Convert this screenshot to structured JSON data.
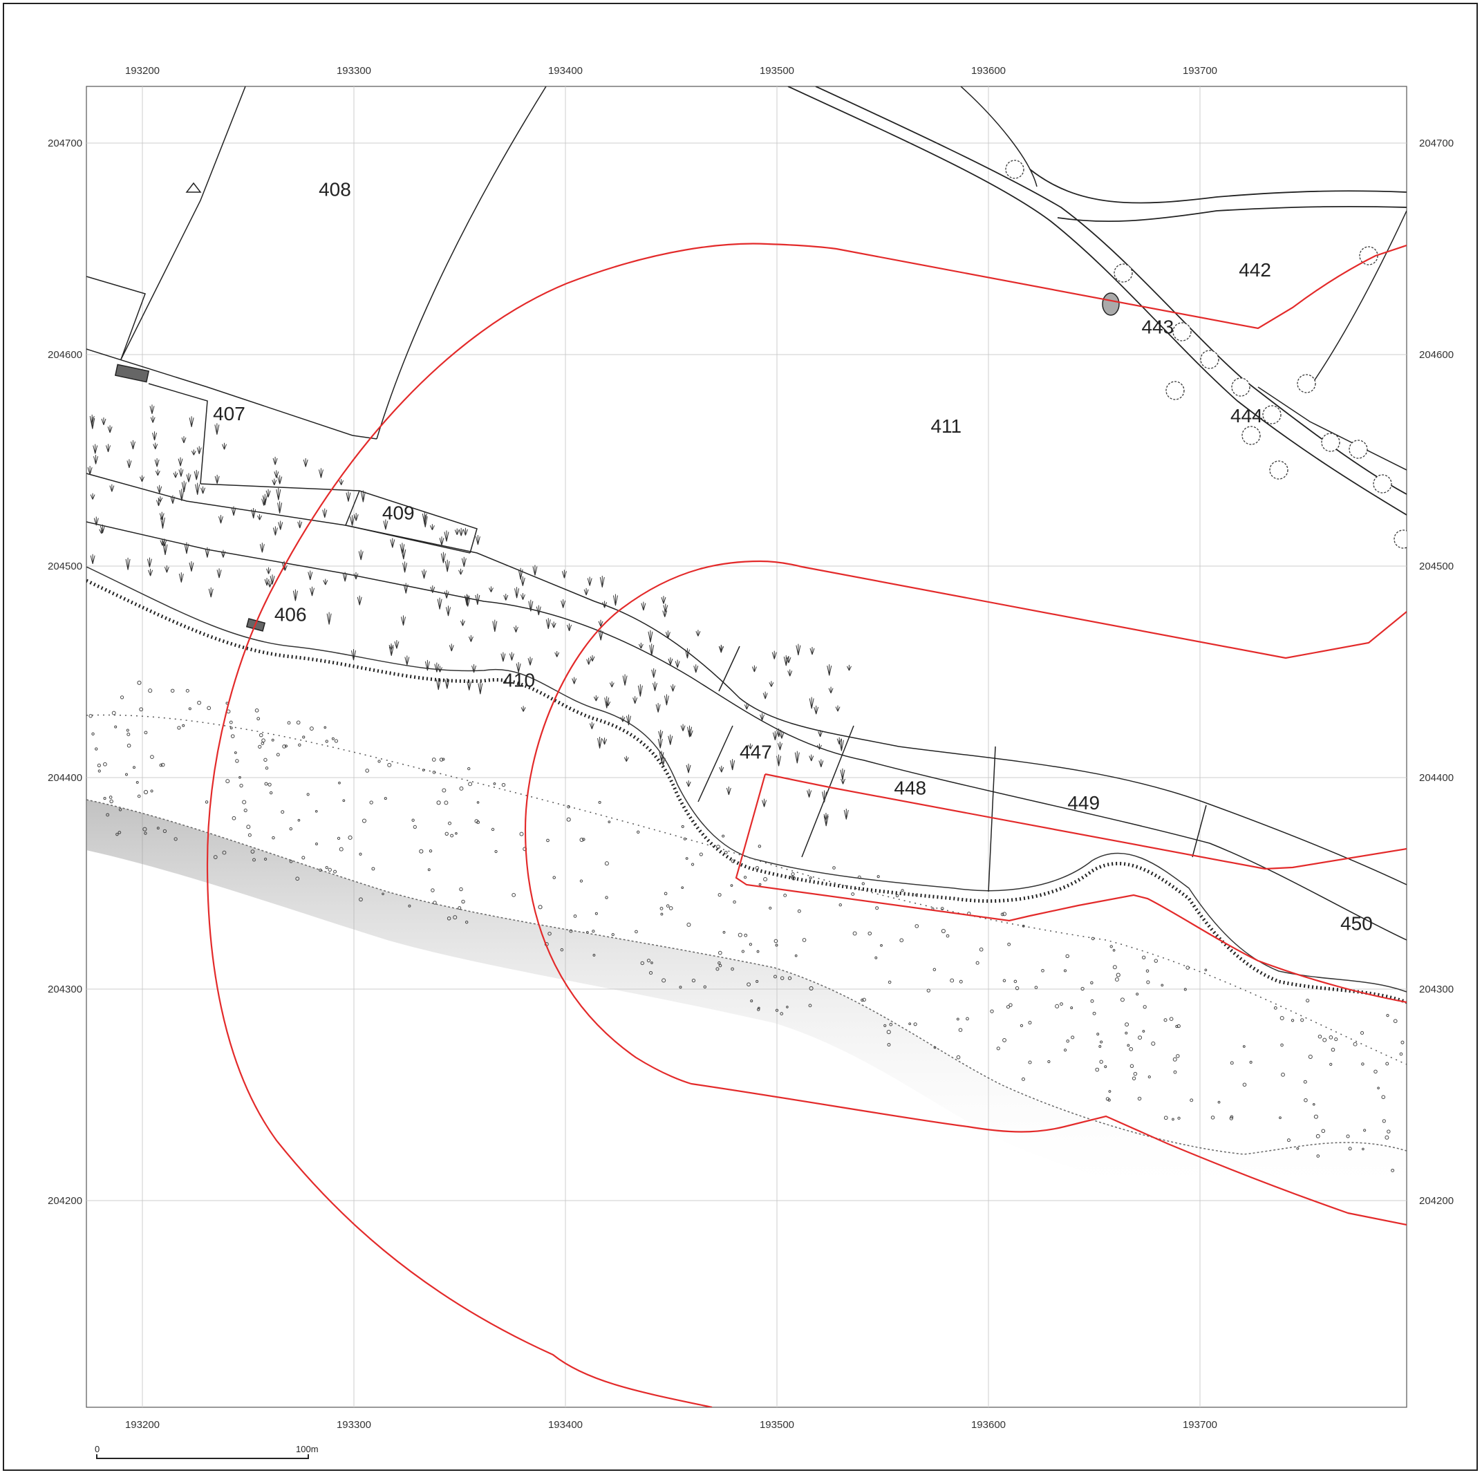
{
  "map": {
    "easting_ticks": [
      "193200",
      "193300",
      "193400",
      "193500",
      "193600",
      "193700"
    ],
    "northing_ticks": [
      "204700",
      "204600",
      "204500",
      "204400",
      "204300",
      "204200"
    ],
    "parcels": [
      {
        "id": "408",
        "e": 193291,
        "n": 204675
      },
      {
        "id": "407",
        "e": 193241,
        "n": 204569
      },
      {
        "id": "409",
        "e": 193321,
        "n": 204522
      },
      {
        "id": "406",
        "e": 193270,
        "n": 204474
      },
      {
        "id": "410",
        "e": 193378,
        "n": 204443
      },
      {
        "id": "411",
        "e": 193580,
        "n": 204563
      },
      {
        "id": "442",
        "e": 193726,
        "n": 204637
      },
      {
        "id": "443",
        "e": 193680,
        "n": 204610
      },
      {
        "id": "444",
        "e": 193722,
        "n": 204568
      },
      {
        "id": "447",
        "e": 193490,
        "n": 204409
      },
      {
        "id": "448",
        "e": 193563,
        "n": 204392
      },
      {
        "id": "449",
        "e": 193645,
        "n": 204385
      },
      {
        "id": "450",
        "e": 193774,
        "n": 204328
      }
    ],
    "colors": {
      "boundary": "#e32a2a",
      "linework": "#2a2a2a",
      "grid": "#cccccc",
      "shore": "#bdbdbd"
    },
    "scale_bar": {
      "start_label": "0",
      "end_label": "100m"
    }
  }
}
